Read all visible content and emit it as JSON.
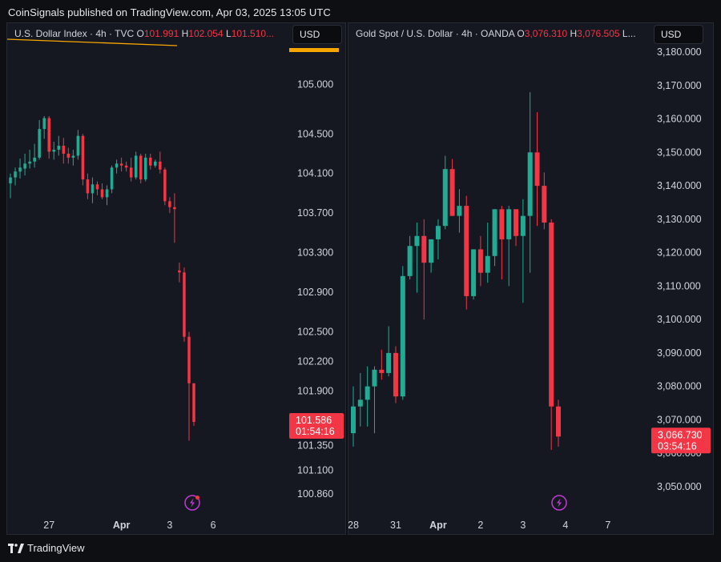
{
  "header": {
    "published_line": "CoinSignals published on TradingView.com, Apr 03, 2025 13:05 UTC"
  },
  "footer": {
    "brand": "TradingView"
  },
  "colors": {
    "up": "#22ab94",
    "down": "#f23645",
    "accent_line": "#f7a600"
  },
  "charts": [
    {
      "legend": {
        "symbol": "U.S. Dollar Index · 4h · TVC",
        "open_label": "O",
        "open": "101.991",
        "high_label": "H",
        "high": "102.054",
        "low_label": "L",
        "low": "101.510..."
      },
      "currency": "USD",
      "last_price": "101.586",
      "countdown": "01:54:16",
      "icon": "lightning-icon",
      "chart_data": {
        "type": "candlestick",
        "title": "U.S. Dollar Index · 4h · TVC",
        "ylim": [
          100.7,
          105.4
        ],
        "y_ticks": [
          "105.000",
          "104.500",
          "104.100",
          "103.700",
          "103.300",
          "102.900",
          "102.500",
          "102.200",
          "101.900",
          "101.350",
          "101.100",
          "100.860"
        ],
        "x_ticks": [
          {
            "label": "27",
            "x": 8
          },
          {
            "label": "Apr",
            "x": 23
          },
          {
            "label": "3",
            "x": 33
          },
          {
            "label": "6",
            "x": 42
          }
        ],
        "candles": [
          {
            "o": 104.0,
            "h": 104.1,
            "l": 103.85,
            "c": 104.06
          },
          {
            "o": 104.06,
            "h": 104.16,
            "l": 103.98,
            "c": 104.12
          },
          {
            "o": 104.12,
            "h": 104.25,
            "l": 104.05,
            "c": 104.16
          },
          {
            "o": 104.15,
            "h": 104.3,
            "l": 104.08,
            "c": 104.2
          },
          {
            "o": 104.2,
            "h": 104.34,
            "l": 104.15,
            "c": 104.22
          },
          {
            "o": 104.22,
            "h": 104.4,
            "l": 104.16,
            "c": 104.26
          },
          {
            "o": 104.26,
            "h": 104.64,
            "l": 104.24,
            "c": 104.55
          },
          {
            "o": 104.55,
            "h": 104.68,
            "l": 104.45,
            "c": 104.66
          },
          {
            "o": 104.66,
            "h": 104.68,
            "l": 104.25,
            "c": 104.32
          },
          {
            "o": 104.32,
            "h": 104.42,
            "l": 104.24,
            "c": 104.34
          },
          {
            "o": 104.34,
            "h": 104.48,
            "l": 104.28,
            "c": 104.38
          },
          {
            "o": 104.38,
            "h": 104.46,
            "l": 104.2,
            "c": 104.3
          },
          {
            "o": 104.3,
            "h": 104.36,
            "l": 104.2,
            "c": 104.26
          },
          {
            "o": 104.26,
            "h": 104.34,
            "l": 104.18,
            "c": 104.28
          },
          {
            "o": 104.28,
            "h": 104.54,
            "l": 104.24,
            "c": 104.48
          },
          {
            "o": 104.48,
            "h": 104.5,
            "l": 103.98,
            "c": 104.04
          },
          {
            "o": 104.04,
            "h": 104.1,
            "l": 103.84,
            "c": 103.9
          },
          {
            "o": 103.9,
            "h": 104.06,
            "l": 103.8,
            "c": 103.99
          },
          {
            "o": 103.99,
            "h": 104.02,
            "l": 103.88,
            "c": 103.94
          },
          {
            "o": 103.94,
            "h": 104.0,
            "l": 103.84,
            "c": 103.86
          },
          {
            "o": 103.86,
            "h": 103.98,
            "l": 103.78,
            "c": 103.94
          },
          {
            "o": 103.94,
            "h": 104.18,
            "l": 103.9,
            "c": 104.16
          },
          {
            "o": 104.16,
            "h": 104.24,
            "l": 104.1,
            "c": 104.2
          },
          {
            "o": 104.2,
            "h": 104.26,
            "l": 104.12,
            "c": 104.18
          },
          {
            "o": 104.18,
            "h": 104.22,
            "l": 104.12,
            "c": 104.16
          },
          {
            "o": 104.16,
            "h": 104.26,
            "l": 104.02,
            "c": 104.06
          },
          {
            "o": 104.06,
            "h": 104.32,
            "l": 104.04,
            "c": 104.28
          },
          {
            "o": 104.28,
            "h": 104.3,
            "l": 104.0,
            "c": 104.04
          },
          {
            "o": 104.04,
            "h": 104.3,
            "l": 104.02,
            "c": 104.26
          },
          {
            "o": 104.26,
            "h": 104.3,
            "l": 104.14,
            "c": 104.18
          },
          {
            "o": 104.18,
            "h": 104.24,
            "l": 104.16,
            "c": 104.22
          },
          {
            "o": 104.22,
            "h": 104.32,
            "l": 104.1,
            "c": 104.14
          },
          {
            "o": 104.14,
            "h": 104.16,
            "l": 103.78,
            "c": 103.82
          },
          {
            "o": 103.82,
            "h": 103.86,
            "l": 103.7,
            "c": 103.76
          },
          {
            "o": 103.76,
            "h": 103.9,
            "l": 103.4,
            "c": 103.74
          },
          {
            "o": 103.12,
            "h": 103.2,
            "l": 103.0,
            "c": 103.1
          },
          {
            "o": 103.1,
            "h": 103.15,
            "l": 102.4,
            "c": 102.45
          },
          {
            "o": 102.45,
            "h": 102.5,
            "l": 101.4,
            "c": 101.98
          },
          {
            "o": 101.98,
            "h": 101.98,
            "l": 101.55,
            "c": 101.59
          }
        ]
      }
    },
    {
      "legend": {
        "symbol": "Gold Spot / U.S. Dollar · 4h · OANDA",
        "open_label": "O",
        "open": "3,076.310",
        "high_label": "H",
        "high": "3,076.505",
        "low_label": "L..."
      },
      "currency": "USD",
      "last_price": "3,066.730",
      "countdown": "03:54:16",
      "icon": "lightning-icon",
      "chart_data": {
        "type": "candlestick",
        "title": "Gold Spot / U.S. Dollar · 4h · OANDA",
        "ylim": [
          3044,
          3186
        ],
        "y_ticks": [
          "3,180.000",
          "3,170.000",
          "3,160.000",
          "3,150.000",
          "3,140.000",
          "3,130.000",
          "3,120.000",
          "3,110.000",
          "3,100.000",
          "3,090.000",
          "3,080.000",
          "3,070.000",
          "3,060.000",
          "3,050.000"
        ],
        "x_ticks": [
          {
            "label": "28",
            "x": 0
          },
          {
            "label": "31",
            "x": 6
          },
          {
            "label": "Apr",
            "x": 12
          },
          {
            "label": "2",
            "x": 18
          },
          {
            "label": "3",
            "x": 24
          },
          {
            "label": "4",
            "x": 30
          },
          {
            "label": "7",
            "x": 36
          }
        ],
        "candles": [
          {
            "o": 3066,
            "h": 3080,
            "l": 3062,
            "c": 3074
          },
          {
            "o": 3074,
            "h": 3084,
            "l": 3068,
            "c": 3076
          },
          {
            "o": 3076,
            "h": 3086,
            "l": 3068,
            "c": 3080
          },
          {
            "o": 3080,
            "h": 3086,
            "l": 3066,
            "c": 3085
          },
          {
            "o": 3085,
            "h": 3091,
            "l": 3082,
            "c": 3084
          },
          {
            "o": 3084,
            "h": 3098,
            "l": 3083,
            "c": 3090
          },
          {
            "o": 3090,
            "h": 3092,
            "l": 3075,
            "c": 3077
          },
          {
            "o": 3077,
            "h": 3116,
            "l": 3076,
            "c": 3113
          },
          {
            "o": 3113,
            "h": 3125,
            "l": 3112,
            "c": 3122
          },
          {
            "o": 3122,
            "h": 3129,
            "l": 3108,
            "c": 3125
          },
          {
            "o": 3125,
            "h": 3130,
            "l": 3100,
            "c": 3117
          },
          {
            "o": 3117,
            "h": 3124,
            "l": 3114,
            "c": 3124
          },
          {
            "o": 3124,
            "h": 3130,
            "l": 3118,
            "c": 3128
          },
          {
            "o": 3128,
            "h": 3149,
            "l": 3127,
            "c": 3145
          },
          {
            "o": 3145,
            "h": 3148,
            "l": 3131,
            "c": 3131
          },
          {
            "o": 3131,
            "h": 3139,
            "l": 3126,
            "c": 3134
          },
          {
            "o": 3134,
            "h": 3137,
            "l": 3103,
            "c": 3107
          },
          {
            "o": 3107,
            "h": 3121,
            "l": 3106,
            "c": 3121
          },
          {
            "o": 3121,
            "h": 3125,
            "l": 3110,
            "c": 3114
          },
          {
            "o": 3114,
            "h": 3129,
            "l": 3111,
            "c": 3119
          },
          {
            "o": 3119,
            "h": 3133,
            "l": 3116,
            "c": 3133
          },
          {
            "o": 3133,
            "h": 3134,
            "l": 3112,
            "c": 3124
          },
          {
            "o": 3124,
            "h": 3134,
            "l": 3110,
            "c": 3133
          },
          {
            "o": 3133,
            "h": 3133,
            "l": 3122,
            "c": 3125
          },
          {
            "o": 3125,
            "h": 3136,
            "l": 3105,
            "c": 3131
          },
          {
            "o": 3131,
            "h": 3168,
            "l": 3114,
            "c": 3150
          },
          {
            "o": 3150,
            "h": 3162,
            "l": 3128,
            "c": 3140
          },
          {
            "o": 3140,
            "h": 3144,
            "l": 3127,
            "c": 3129
          },
          {
            "o": 3129,
            "h": 3130,
            "l": 3061,
            "c": 3074
          },
          {
            "o": 3074,
            "h": 3076,
            "l": 3062,
            "c": 3065
          }
        ]
      }
    }
  ]
}
